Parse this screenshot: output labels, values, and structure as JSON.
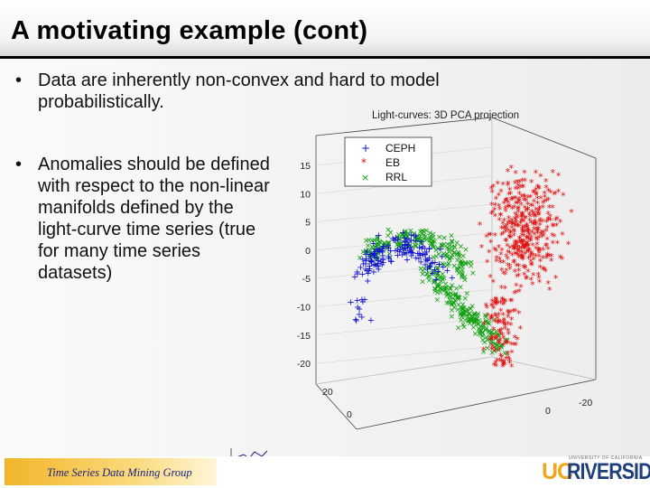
{
  "slide": {
    "title": "A motivating example (cont)",
    "bullets": [
      "Data are inherently non-convex and hard to model probabilistically.",
      "Anomalies should be defined with respect to the non-linear manifolds defined by the light-curve time series (true for many time series datasets)"
    ],
    "bullet_symbol": "•"
  },
  "footer": {
    "text": "Time Series Data Mining Group",
    "logo_uc": "UC",
    "logo_riverside": "RIVERSIDE",
    "logo_university": "UNIVERSITY OF CALIFORNIA"
  },
  "chart_data": {
    "type": "scatter",
    "title": "Light-curves: 3D PCA projection",
    "projection": "3d",
    "z_ticks": [
      "15",
      "10",
      "5",
      "0",
      "-5",
      "-10",
      "-15",
      "-20"
    ],
    "x_ticks": [
      "20",
      "0"
    ],
    "y_ticks": [
      "-20",
      "0"
    ],
    "zlim": [
      -20,
      15
    ],
    "legend": {
      "placement": "top-left",
      "entries": [
        "CEPH",
        "EB",
        "RRL"
      ]
    },
    "series": [
      {
        "name": "CEPH",
        "marker": "+",
        "color": "#1010d0",
        "distribution": "dense blue cluster at left end of the curved manifold"
      },
      {
        "name": "EB",
        "marker": "*",
        "color": "#e01010",
        "distribution": "dense red vertical blob on the right"
      },
      {
        "name": "RRL",
        "marker": "x",
        "color": "#10a010",
        "distribution": "green arc connecting the blue cluster to the lower tail"
      }
    ]
  }
}
